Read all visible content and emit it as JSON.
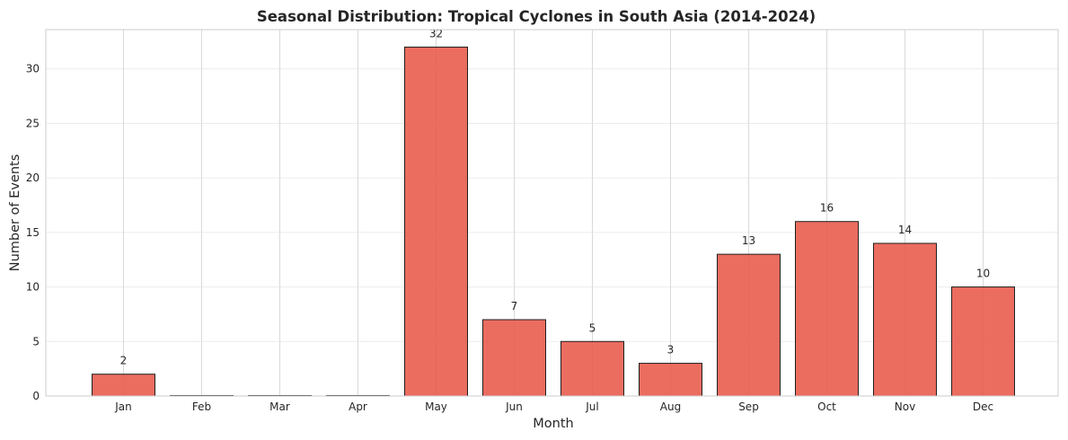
{
  "chart_data": {
    "type": "bar",
    "title": "Seasonal Distribution: Tropical Cyclones in South Asia (2014-2024)",
    "xlabel": "Month",
    "ylabel": "Number of Events",
    "categories": [
      "Jan",
      "Feb",
      "Mar",
      "Apr",
      "May",
      "Jun",
      "Jul",
      "Aug",
      "Sep",
      "Oct",
      "Nov",
      "Dec"
    ],
    "values": [
      2,
      0,
      0,
      0,
      32,
      7,
      5,
      3,
      13,
      16,
      14,
      10
    ],
    "data_labels": [
      "2",
      "",
      "",
      "",
      "32",
      "7",
      "5",
      "3",
      "13",
      "16",
      "14",
      "10"
    ],
    "ylim": [
      0,
      33.6
    ],
    "yticks": [
      0,
      5,
      10,
      15,
      20,
      25,
      30
    ],
    "grid": true,
    "bar_color": "#e8594a",
    "edge_color": "#1f1f1f"
  }
}
